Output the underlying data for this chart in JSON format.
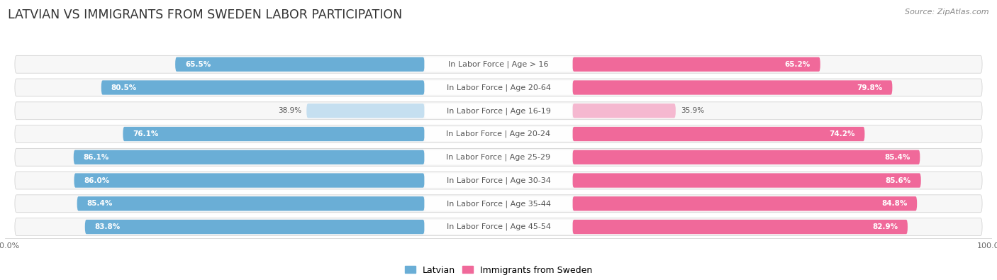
{
  "title": "LATVIAN VS IMMIGRANTS FROM SWEDEN LABOR PARTICIPATION",
  "source": "Source: ZipAtlas.com",
  "categories": [
    "In Labor Force | Age > 16",
    "In Labor Force | Age 20-64",
    "In Labor Force | Age 16-19",
    "In Labor Force | Age 20-24",
    "In Labor Force | Age 25-29",
    "In Labor Force | Age 30-34",
    "In Labor Force | Age 35-44",
    "In Labor Force | Age 45-54"
  ],
  "latvian": [
    65.5,
    80.5,
    38.9,
    76.1,
    86.1,
    86.0,
    85.4,
    83.8
  ],
  "immigrants": [
    65.2,
    79.8,
    35.9,
    74.2,
    85.4,
    85.6,
    84.8,
    82.9
  ],
  "latvian_color": "#6aaed6",
  "latvian_color_light": "#c5dff0",
  "immigrants_color": "#f0699a",
  "immigrants_color_light": "#f5b8d0",
  "row_bg_color": "#e8e8e8",
  "row_inner_bg": "#f7f7f7",
  "max_value": 100.0,
  "title_fontsize": 12.5,
  "label_fontsize": 8.0,
  "value_fontsize": 7.5,
  "legend_fontsize": 9,
  "axis_label_fontsize": 8,
  "background_color": "#ffffff"
}
